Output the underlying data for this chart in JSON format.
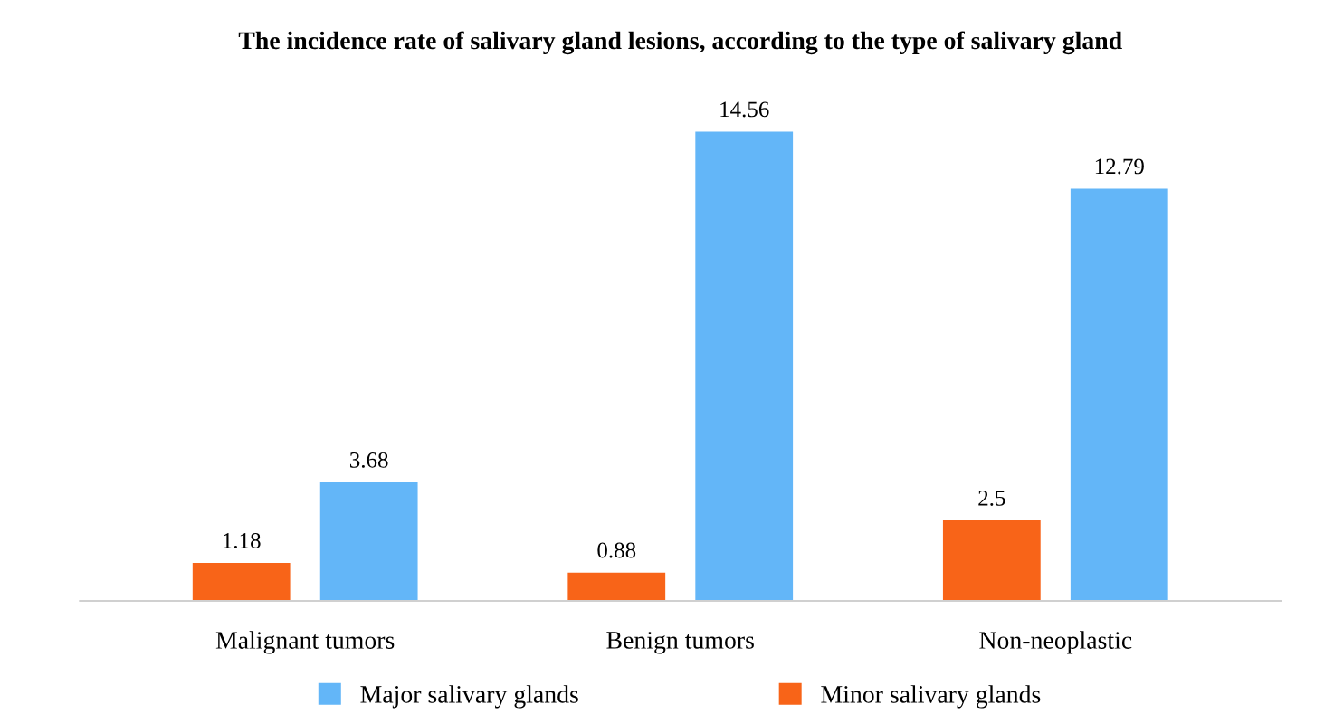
{
  "chart_data": {
    "type": "bar",
    "title": "The incidence rate of salivary gland lesions, according to the type of salivary gland",
    "categories": [
      "Malignant tumors",
      "Benign tumors",
      "Non-neoplastic"
    ],
    "series": [
      {
        "name": "Minor salivary glands",
        "color": "#f86418",
        "values": [
          1.18,
          0.88,
          2.5
        ]
      },
      {
        "name": "Major salivary glands",
        "color": "#63b6f8",
        "values": [
          3.68,
          14.56,
          12.79
        ]
      }
    ],
    "data_labels": true,
    "legend": "bottom",
    "grid": false,
    "tick_labels": "x"
  }
}
